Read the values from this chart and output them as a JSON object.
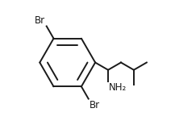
{
  "bg_color": "#ffffff",
  "line_color": "#1a1a1a",
  "line_width": 1.4,
  "font_size": 8.5,
  "br1_label": "Br",
  "br2_label": "Br",
  "nh2_label": "NH₂",
  "bx": 0.345,
  "by": 0.5,
  "BR": 0.215,
  "inner_ratio": 0.72
}
